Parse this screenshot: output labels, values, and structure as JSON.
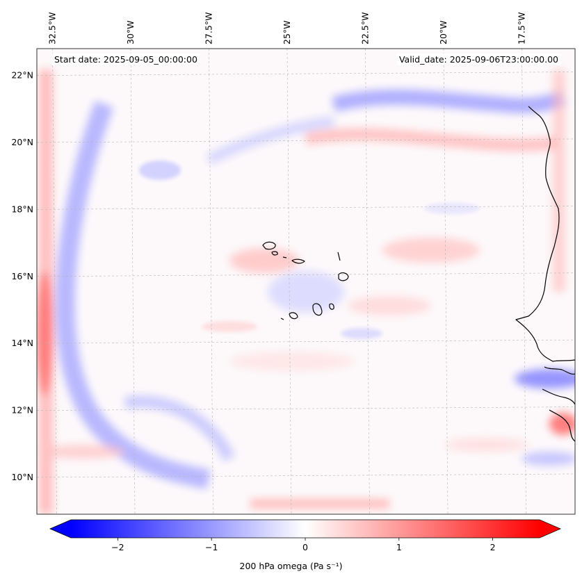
{
  "map": {
    "lon_labels": [
      "32.5°W",
      "30°W",
      "27.5°W",
      "25°W",
      "22.5°W",
      "20°W",
      "17.5°W"
    ],
    "lon_values": [
      -32.5,
      -30,
      -27.5,
      -25,
      -22.5,
      -20,
      -17.5
    ],
    "lat_labels": [
      "22°N",
      "20°N",
      "18°N",
      "16°N",
      "14°N",
      "12°N",
      "10°N"
    ],
    "lat_values": [
      22,
      20,
      18,
      16,
      14,
      12,
      10
    ],
    "extent": {
      "lon_min": -33.0,
      "lon_max": -15.8,
      "lat_min": 8.9,
      "lat_max": 22.8
    },
    "gridlines": true,
    "field_colors": {
      "negative": "#0000ff",
      "neutral": "#ffffff",
      "positive": "#ff0000"
    }
  },
  "annotations": {
    "start_date": "Start date: 2025-09-05_00:00:00",
    "valid_date": "Valid_date: 2025-09-06T23:00:00.00"
  },
  "colorbar": {
    "label": "200 hPa omega (Pa s⁻¹)",
    "tick_labels": [
      "−2",
      "−1",
      "0",
      "1",
      "2"
    ],
    "tick_values": [
      -2,
      -1,
      0,
      1,
      2
    ],
    "range": [
      -2.5,
      2.5
    ],
    "extend": "both"
  }
}
